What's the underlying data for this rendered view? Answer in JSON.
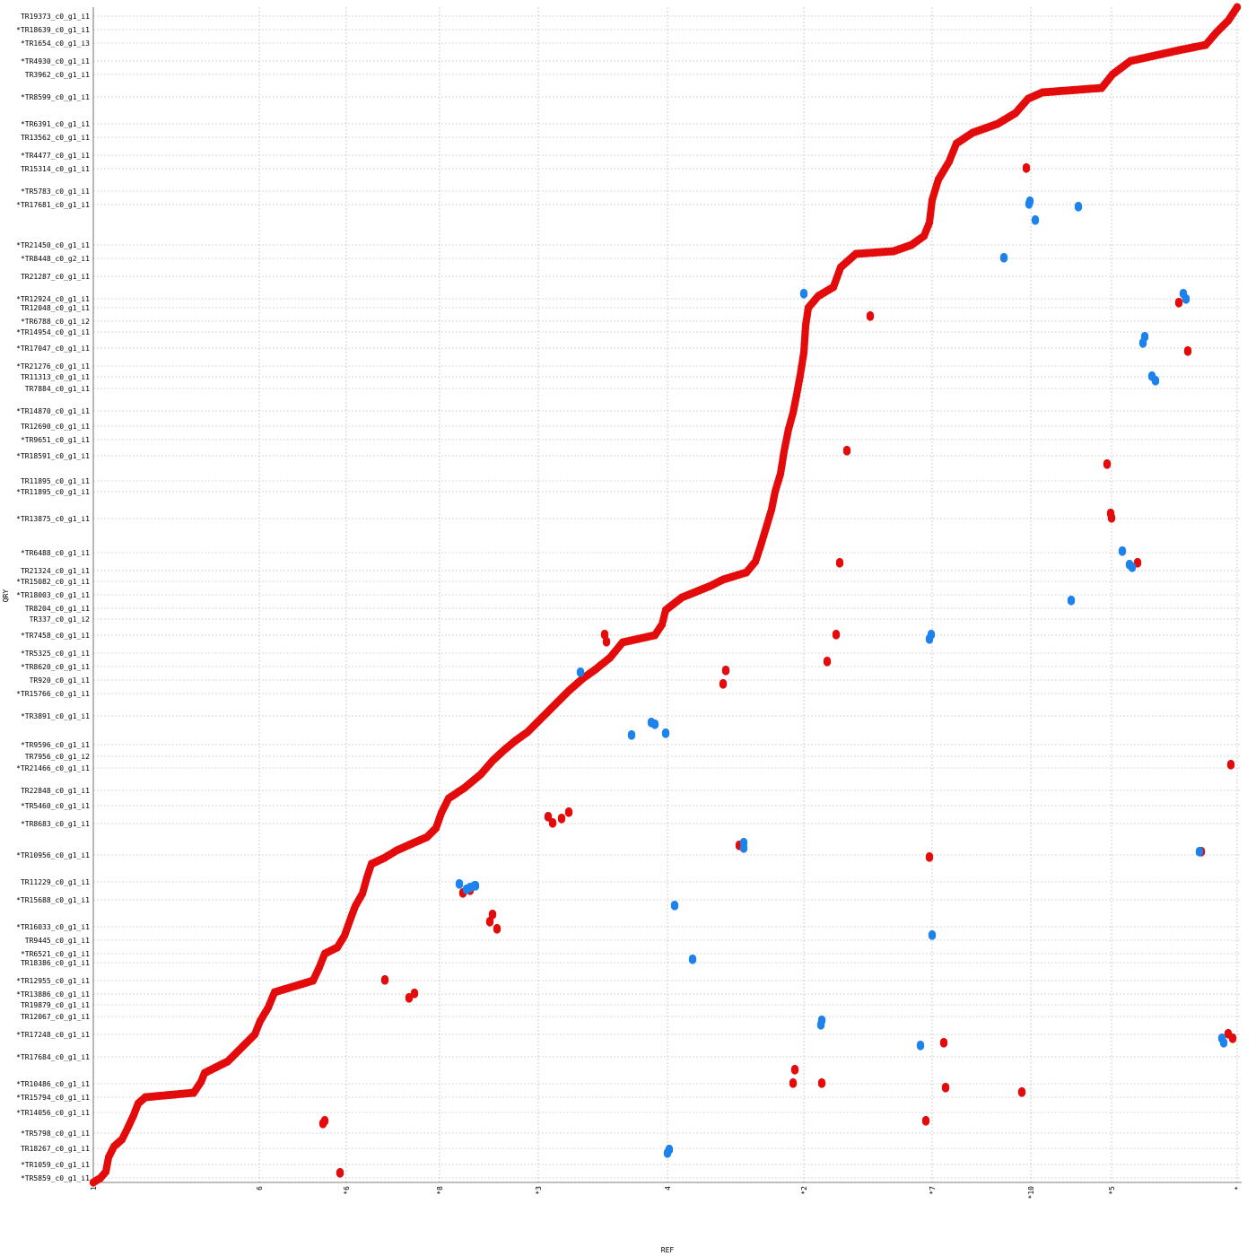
{
  "chart_data": {
    "type": "scatter",
    "title": "",
    "xlabel": "REF",
    "ylabel": "QRY",
    "xlim": [
      0,
      1280
    ],
    "ylim": [
      0,
      1310
    ],
    "grid": true,
    "colors": {
      "forward": "#e30b0b",
      "reverse": "#1e82eb",
      "grid": "#b0b0b0"
    },
    "x_ticks": [
      {
        "label": "1",
        "pos": 0
      },
      {
        "label": "6",
        "pos": 185
      },
      {
        "label": "*6",
        "pos": 282
      },
      {
        "label": "*8",
        "pos": 386
      },
      {
        "label": "*3",
        "pos": 496
      },
      {
        "label": "4",
        "pos": 640
      },
      {
        "label": "*2",
        "pos": 792
      },
      {
        "label": "*7",
        "pos": 935
      },
      {
        "label": "*10",
        "pos": 1045
      },
      {
        "label": "*5",
        "pos": 1135
      },
      {
        "label": "*",
        "pos": 1275
      }
    ],
    "y_ticks": [
      {
        "label": "TR19373_c0_g1_i1",
        "pos": 1300
      },
      {
        "label": "*TR18639_c0_g1_i1",
        "pos": 1285
      },
      {
        "label": "*TR1654_c0_g1_i3",
        "pos": 1270
      },
      {
        "label": "*TR4930_c0_g1_i1",
        "pos": 1250
      },
      {
        "label": "TR3962_c0_g1_i1",
        "pos": 1235
      },
      {
        "label": "*TR8599_c0_g1_i1",
        "pos": 1210
      },
      {
        "label": "*TR6391_c0_g1_i1",
        "pos": 1180
      },
      {
        "label": "TR13562_c0_g1_i1",
        "pos": 1165
      },
      {
        "label": "*TR4477_c0_g1_i1",
        "pos": 1145
      },
      {
        "label": "TR15314_c0_g1_i1",
        "pos": 1130
      },
      {
        "label": "*TR5783_c0_g1_i1",
        "pos": 1105
      },
      {
        "label": "*TR17681_c0_g1_i1",
        "pos": 1090
      },
      {
        "label": "*TR21450_c0_g1_i1",
        "pos": 1045
      },
      {
        "label": "*TR8448_c0_g2_i1",
        "pos": 1030
      },
      {
        "label": "TR21287_c0_g1_i1",
        "pos": 1010
      },
      {
        "label": "*TR12924_c0_g1_i1",
        "pos": 985
      },
      {
        "label": "TR12048_c0_g1_i1",
        "pos": 975
      },
      {
        "label": "*TR6788_c0_g1_i2",
        "pos": 960
      },
      {
        "label": "*TR14954_c0_g1_i1",
        "pos": 948
      },
      {
        "label": "*TR17047_c0_g1_i1",
        "pos": 930
      },
      {
        "label": "*TR21276_c0_g1_i1",
        "pos": 910
      },
      {
        "label": "TR11313_c0_g1_i1",
        "pos": 898
      },
      {
        "label": "TR7884_c0_g1_i1",
        "pos": 885
      },
      {
        "label": "*TR14870_c0_g1_i1",
        "pos": 860
      },
      {
        "label": "TR12690_c0_g1_i1",
        "pos": 843
      },
      {
        "label": "*TR9651_c0_g1_i1",
        "pos": 828
      },
      {
        "label": "*TR18591_c0_g1_i1",
        "pos": 810
      },
      {
        "label": "TR11895_c0_g1_i1",
        "pos": 782
      },
      {
        "label": "*TR11895_c0_g1_i1",
        "pos": 770
      },
      {
        "label": "*TR13875_c0_g1_i1",
        "pos": 740
      },
      {
        "label": "*TR6488_c0_g1_i1",
        "pos": 702
      },
      {
        "label": "TR21324_c0_g1_i1",
        "pos": 682
      },
      {
        "label": "*TR15082_c0_g1_i1",
        "pos": 670
      },
      {
        "label": "*TR18003_c0_g1_i1",
        "pos": 655
      },
      {
        "label": "TR8204_c0_g1_i1",
        "pos": 640
      },
      {
        "label": "TR337_c0_g1_i2",
        "pos": 628
      },
      {
        "label": "*TR7458_c0_g1_i1",
        "pos": 610
      },
      {
        "label": "*TR5325_c0_g1_i1",
        "pos": 590
      },
      {
        "label": "*TR8620_c0_g1_i1",
        "pos": 575
      },
      {
        "label": "TR920_c0_g1_i1",
        "pos": 560
      },
      {
        "label": "*TR15766_c0_g1_i1",
        "pos": 545
      },
      {
        "label": "*TR3891_c0_g1_i1",
        "pos": 520
      },
      {
        "label": "*TR9596_c0_g1_i1",
        "pos": 488
      },
      {
        "label": "TR7956_c0_g1_i2",
        "pos": 475
      },
      {
        "label": "*TR21466_c0_g1_i1",
        "pos": 462
      },
      {
        "label": "TR22848_c0_g1_i1",
        "pos": 437
      },
      {
        "label": "*TR5460_c0_g1_i1",
        "pos": 420
      },
      {
        "label": "*TR8683_c0_g1_i1",
        "pos": 400
      },
      {
        "label": "*TR10956_c0_g1_i1",
        "pos": 365
      },
      {
        "label": "TR11229_c0_g1_i1",
        "pos": 335
      },
      {
        "label": "*TR15688_c0_g1_i1",
        "pos": 315
      },
      {
        "label": "*TR16033_c0_g1_i1",
        "pos": 285
      },
      {
        "label": "TR9445_c0_g1_i1",
        "pos": 270
      },
      {
        "label": "*TR6521_c0_g1_i1",
        "pos": 255
      },
      {
        "label": "TR18386_c0_g1_i1",
        "pos": 245
      },
      {
        "label": "*TR12955_c0_g1_i1",
        "pos": 225
      },
      {
        "label": "*TR13886_c0_g1_i1",
        "pos": 210
      },
      {
        "label": "TR19879_c0_g1_i1",
        "pos": 198
      },
      {
        "label": "TR12067_c0_g1_i1",
        "pos": 185
      },
      {
        "label": "*TR17248_c0_g1_i1",
        "pos": 165
      },
      {
        "label": "*TR17684_c0_g1_i1",
        "pos": 140
      },
      {
        "label": "*TR10486_c0_g1_i1",
        "pos": 110
      },
      {
        "label": "*TR15794_c0_g1_i1",
        "pos": 95
      },
      {
        "label": "*TR14056_c0_g1_i1",
        "pos": 78
      },
      {
        "label": "*TR5798_c0_g1_i1",
        "pos": 55
      },
      {
        "label": "TR18267_c0_g1_i1",
        "pos": 38
      },
      {
        "label": "*TR1059_c0_g1_i1",
        "pos": 20
      },
      {
        "label": "*TR5859_c0_g1_i1",
        "pos": 5
      }
    ],
    "main_path": [
      [
        0,
        0
      ],
      [
        8,
        5
      ],
      [
        14,
        12
      ],
      [
        17,
        28
      ],
      [
        23,
        40
      ],
      [
        32,
        48
      ],
      [
        38,
        60
      ],
      [
        45,
        75
      ],
      [
        50,
        88
      ],
      [
        58,
        95
      ],
      [
        112,
        100
      ],
      [
        120,
        112
      ],
      [
        124,
        122
      ],
      [
        150,
        135
      ],
      [
        160,
        145
      ],
      [
        170,
        155
      ],
      [
        180,
        165
      ],
      [
        186,
        180
      ],
      [
        195,
        195
      ],
      [
        202,
        212
      ],
      [
        245,
        225
      ],
      [
        252,
        240
      ],
      [
        258,
        255
      ],
      [
        272,
        262
      ],
      [
        280,
        275
      ],
      [
        286,
        292
      ],
      [
        292,
        308
      ],
      [
        300,
        322
      ],
      [
        305,
        340
      ],
      [
        310,
        355
      ],
      [
        325,
        362
      ],
      [
        338,
        370
      ],
      [
        356,
        378
      ],
      [
        372,
        385
      ],
      [
        382,
        395
      ],
      [
        388,
        412
      ],
      [
        396,
        428
      ],
      [
        414,
        440
      ],
      [
        432,
        455
      ],
      [
        445,
        470
      ],
      [
        458,
        482
      ],
      [
        470,
        492
      ],
      [
        484,
        502
      ],
      [
        500,
        518
      ],
      [
        514,
        532
      ],
      [
        530,
        548
      ],
      [
        546,
        562
      ],
      [
        560,
        572
      ],
      [
        576,
        585
      ],
      [
        590,
        602
      ],
      [
        626,
        610
      ],
      [
        634,
        622
      ],
      [
        638,
        638
      ],
      [
        656,
        652
      ],
      [
        688,
        665
      ],
      [
        702,
        672
      ],
      [
        728,
        680
      ],
      [
        738,
        692
      ],
      [
        744,
        710
      ],
      [
        750,
        730
      ],
      [
        756,
        750
      ],
      [
        760,
        770
      ],
      [
        766,
        790
      ],
      [
        770,
        815
      ],
      [
        775,
        840
      ],
      [
        780,
        858
      ],
      [
        784,
        878
      ],
      [
        788,
        900
      ],
      [
        792,
        925
      ],
      [
        794,
        955
      ],
      [
        797,
        975
      ],
      [
        808,
        988
      ],
      [
        825,
        998
      ],
      [
        833,
        1020
      ],
      [
        850,
        1035
      ],
      [
        892,
        1038
      ],
      [
        912,
        1045
      ],
      [
        926,
        1055
      ],
      [
        932,
        1070
      ],
      [
        935,
        1095
      ],
      [
        942,
        1118
      ],
      [
        954,
        1138
      ],
      [
        962,
        1158
      ],
      [
        980,
        1170
      ],
      [
        1008,
        1180
      ],
      [
        1028,
        1192
      ],
      [
        1042,
        1208
      ],
      [
        1058,
        1215
      ],
      [
        1124,
        1220
      ],
      [
        1136,
        1235
      ],
      [
        1156,
        1250
      ],
      [
        1210,
        1262
      ],
      [
        1240,
        1268
      ],
      [
        1252,
        1282
      ],
      [
        1265,
        1295
      ],
      [
        1275,
        1310
      ]
    ],
    "forward_extra": [
      [
        256,
        65
      ],
      [
        258,
        68
      ],
      [
        275,
        10
      ],
      [
        325,
        225
      ],
      [
        352,
        205
      ],
      [
        358,
        210
      ],
      [
        412,
        322
      ],
      [
        420,
        325
      ],
      [
        442,
        290
      ],
      [
        450,
        282
      ],
      [
        445,
        298
      ],
      [
        507,
        407
      ],
      [
        512,
        400
      ],
      [
        522,
        405
      ],
      [
        530,
        412
      ],
      [
        570,
        610
      ],
      [
        572,
        602
      ],
      [
        702,
        555
      ],
      [
        705,
        570
      ],
      [
        720,
        375
      ],
      [
        780,
        110
      ],
      [
        782,
        125
      ],
      [
        812,
        110
      ],
      [
        818,
        580
      ],
      [
        828,
        610
      ],
      [
        832,
        690
      ],
      [
        840,
        815
      ],
      [
        866,
        965
      ],
      [
        928,
        68
      ],
      [
        932,
        362
      ],
      [
        948,
        155
      ],
      [
        950,
        105
      ],
      [
        1035,
        100
      ],
      [
        1040,
        1130
      ],
      [
        1130,
        800
      ],
      [
        1134,
        745
      ],
      [
        1135,
        740
      ],
      [
        1164,
        690
      ],
      [
        1210,
        980
      ],
      [
        1220,
        926
      ],
      [
        1235,
        368
      ],
      [
        1268,
        465
      ],
      [
        1270,
        160
      ],
      [
        1265,
        165
      ]
    ],
    "reverse_points": [
      [
        408,
        332
      ],
      [
        416,
        326
      ],
      [
        420,
        328
      ],
      [
        425,
        330
      ],
      [
        426,
        330
      ],
      [
        543,
        568
      ],
      [
        600,
        498
      ],
      [
        622,
        512
      ],
      [
        626,
        510
      ],
      [
        638,
        500
      ],
      [
        648,
        308
      ],
      [
        668,
        248
      ],
      [
        640,
        32
      ],
      [
        642,
        36
      ],
      [
        725,
        378
      ],
      [
        725,
        372
      ],
      [
        792,
        990
      ],
      [
        811,
        175
      ],
      [
        812,
        180
      ],
      [
        922,
        152
      ],
      [
        932,
        605
      ],
      [
        934,
        610
      ],
      [
        935,
        275
      ],
      [
        1015,
        1030
      ],
      [
        1043,
        1090
      ],
      [
        1044,
        1093
      ],
      [
        1050,
        1072
      ],
      [
        1090,
        648
      ],
      [
        1098,
        1087
      ],
      [
        1147,
        703
      ],
      [
        1155,
        688
      ],
      [
        1158,
        685
      ],
      [
        1170,
        935
      ],
      [
        1172,
        942
      ],
      [
        1180,
        898
      ],
      [
        1184,
        893
      ],
      [
        1215,
        990
      ],
      [
        1218,
        984
      ],
      [
        1233,
        368
      ],
      [
        1258,
        160
      ],
      [
        1260,
        155
      ]
    ]
  }
}
